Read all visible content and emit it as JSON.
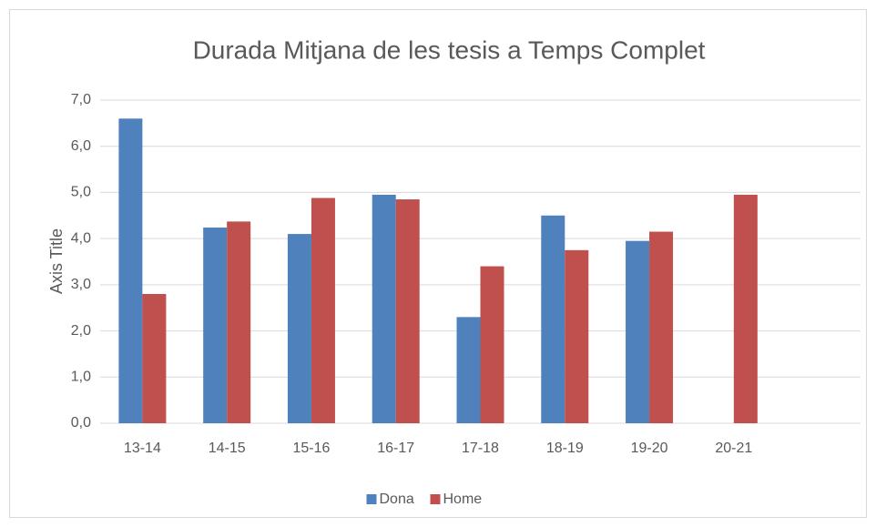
{
  "chart_data": {
    "type": "bar",
    "title": "Durada Mitjana de les tesis a Temps Complet",
    "y_axis_label": "Axis Title",
    "categories": [
      "13-14",
      "14-15",
      "15-16",
      "16-17",
      "17-18",
      "18-19",
      "19-20",
      "20-21",
      null
    ],
    "series": [
      {
        "name": "Dona",
        "color": "#4f81bd",
        "values": [
          6.6,
          4.24,
          4.1,
          4.95,
          2.3,
          4.5,
          3.95,
          null,
          null
        ]
      },
      {
        "name": "Home",
        "color": "#c0504d",
        "values": [
          2.8,
          4.37,
          4.88,
          4.85,
          3.4,
          3.75,
          4.15,
          4.95,
          null
        ]
      }
    ],
    "ylim": [
      0,
      7
    ],
    "yticks": [
      {
        "value": 0,
        "label": "0,0"
      },
      {
        "value": 1,
        "label": "1,0"
      },
      {
        "value": 2,
        "label": "2,0"
      },
      {
        "value": 3,
        "label": "3,0"
      },
      {
        "value": 4,
        "label": "4,0"
      },
      {
        "value": 5,
        "label": "5,0"
      },
      {
        "value": 6,
        "label": "6,0"
      },
      {
        "value": 7,
        "label": "7,0"
      }
    ],
    "grid": true,
    "legend": "bottom"
  }
}
